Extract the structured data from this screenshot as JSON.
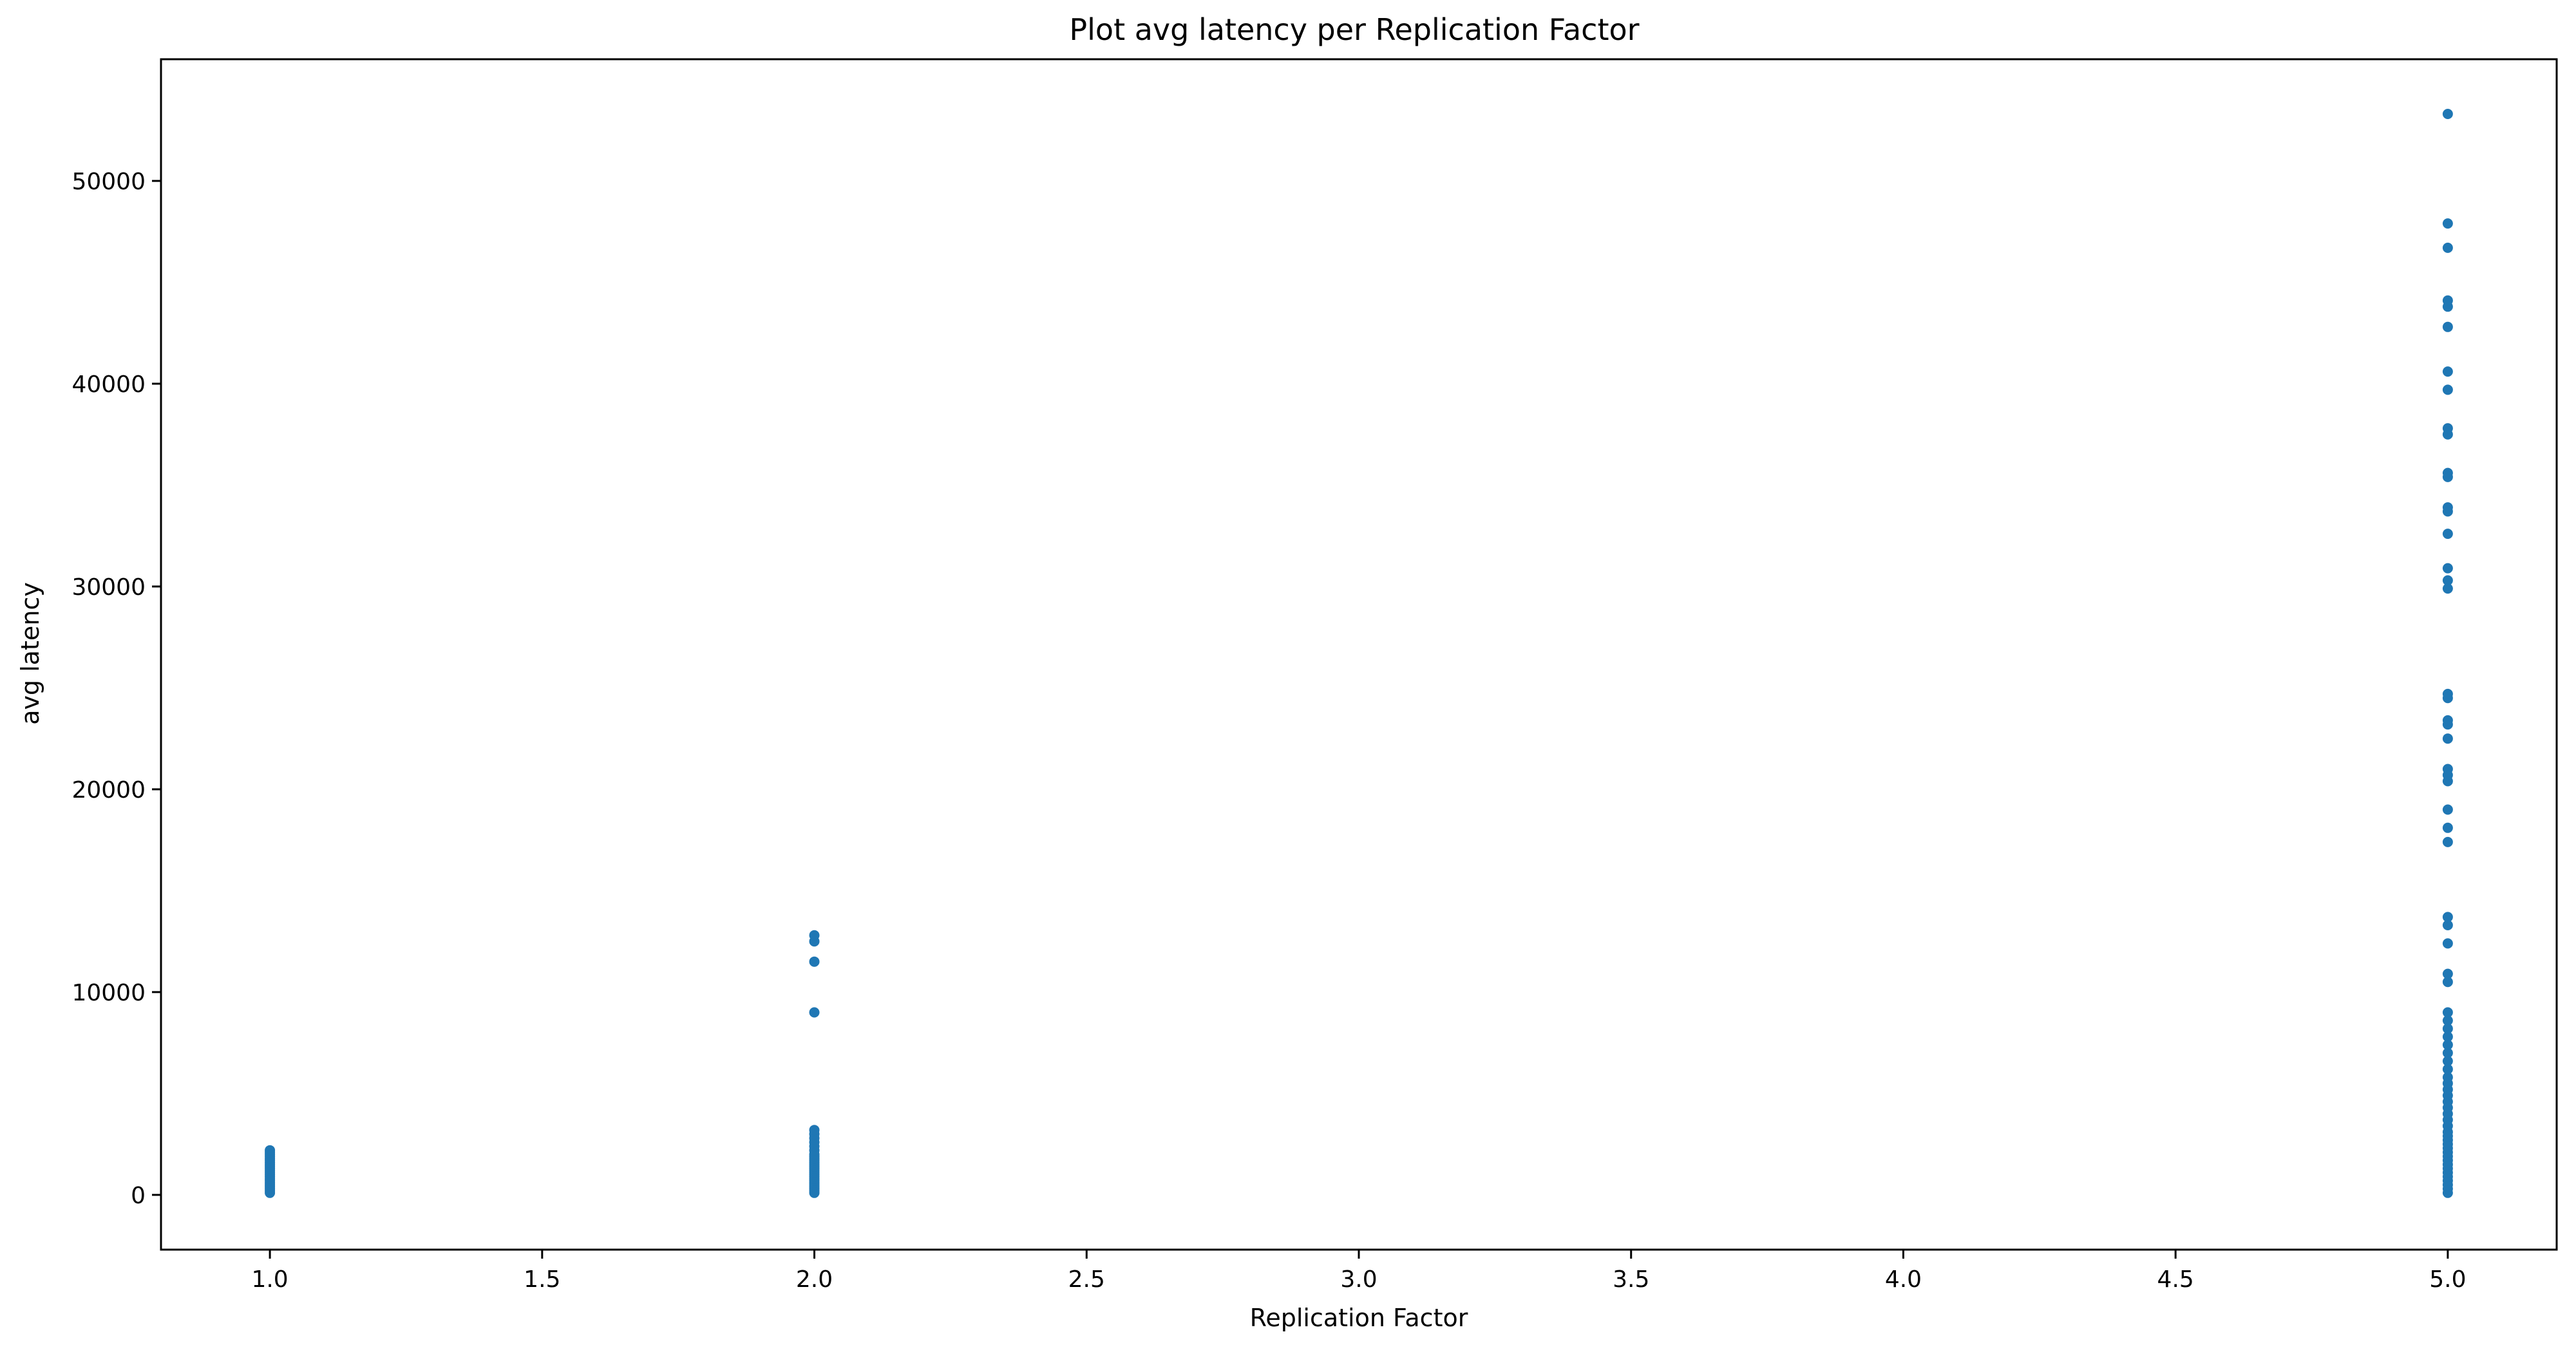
{
  "chart_data": {
    "type": "scatter",
    "title": "Plot avg latency per Replication Factor",
    "xlabel": "Replication Factor",
    "ylabel": "avg latency",
    "xlim": [
      0.8,
      5.2
    ],
    "ylim": [
      -2700,
      56000
    ],
    "xticks": [
      "1.0",
      "1.5",
      "2.0",
      "2.5",
      "3.0",
      "3.5",
      "4.0",
      "4.5",
      "5.0"
    ],
    "yticks": [
      "0",
      "10000",
      "20000",
      "30000",
      "40000",
      "50000"
    ],
    "grid": false,
    "legend": "none",
    "marker_color": "#1f77b4",
    "series": [
      {
        "points": [
          [
            1.0,
            100
          ],
          [
            1.0,
            200
          ],
          [
            1.0,
            300
          ],
          [
            1.0,
            400
          ],
          [
            1.0,
            500
          ],
          [
            1.0,
            600
          ],
          [
            1.0,
            700
          ],
          [
            1.0,
            800
          ],
          [
            1.0,
            900
          ],
          [
            1.0,
            1000
          ],
          [
            1.0,
            1100
          ],
          [
            1.0,
            1200
          ],
          [
            1.0,
            1300
          ],
          [
            1.0,
            1400
          ],
          [
            1.0,
            1500
          ],
          [
            1.0,
            1600
          ],
          [
            1.0,
            1700
          ],
          [
            1.0,
            1800
          ],
          [
            1.0,
            1900
          ],
          [
            1.0,
            2000
          ],
          [
            1.0,
            2100
          ],
          [
            1.0,
            2200
          ],
          [
            2.0,
            100
          ],
          [
            2.0,
            200
          ],
          [
            2.0,
            300
          ],
          [
            2.0,
            400
          ],
          [
            2.0,
            500
          ],
          [
            2.0,
            600
          ],
          [
            2.0,
            700
          ],
          [
            2.0,
            800
          ],
          [
            2.0,
            900
          ],
          [
            2.0,
            1000
          ],
          [
            2.0,
            1100
          ],
          [
            2.0,
            1200
          ],
          [
            2.0,
            1300
          ],
          [
            2.0,
            1400
          ],
          [
            2.0,
            1500
          ],
          [
            2.0,
            1600
          ],
          [
            2.0,
            1700
          ],
          [
            2.0,
            1800
          ],
          [
            2.0,
            1900
          ],
          [
            2.0,
            2000
          ],
          [
            2.0,
            2200
          ],
          [
            2.0,
            2400
          ],
          [
            2.0,
            2600
          ],
          [
            2.0,
            2800
          ],
          [
            2.0,
            3000
          ],
          [
            2.0,
            3200
          ],
          [
            2.0,
            9000
          ],
          [
            2.0,
            11500
          ],
          [
            2.0,
            12500
          ],
          [
            2.0,
            12800
          ],
          [
            5.0,
            100
          ],
          [
            5.0,
            300
          ],
          [
            5.0,
            500
          ],
          [
            5.0,
            700
          ],
          [
            5.0,
            900
          ],
          [
            5.0,
            1100
          ],
          [
            5.0,
            1300
          ],
          [
            5.0,
            1500
          ],
          [
            5.0,
            1700
          ],
          [
            5.0,
            1900
          ],
          [
            5.0,
            2100
          ],
          [
            5.0,
            2300
          ],
          [
            5.0,
            2500
          ],
          [
            5.0,
            2700
          ],
          [
            5.0,
            2900
          ],
          [
            5.0,
            3100
          ],
          [
            5.0,
            3400
          ],
          [
            5.0,
            3700
          ],
          [
            5.0,
            4000
          ],
          [
            5.0,
            4300
          ],
          [
            5.0,
            4600
          ],
          [
            5.0,
            4900
          ],
          [
            5.0,
            5200
          ],
          [
            5.0,
            5500
          ],
          [
            5.0,
            5800
          ],
          [
            5.0,
            6200
          ],
          [
            5.0,
            6600
          ],
          [
            5.0,
            7000
          ],
          [
            5.0,
            7400
          ],
          [
            5.0,
            7800
          ],
          [
            5.0,
            8200
          ],
          [
            5.0,
            8600
          ],
          [
            5.0,
            9000
          ],
          [
            5.0,
            10500
          ],
          [
            5.0,
            10900
          ],
          [
            5.0,
            12400
          ],
          [
            5.0,
            13300
          ],
          [
            5.0,
            13700
          ],
          [
            5.0,
            17400
          ],
          [
            5.0,
            18100
          ],
          [
            5.0,
            19000
          ],
          [
            5.0,
            20400
          ],
          [
            5.0,
            20700
          ],
          [
            5.0,
            21000
          ],
          [
            5.0,
            22500
          ],
          [
            5.0,
            23200
          ],
          [
            5.0,
            23400
          ],
          [
            5.0,
            24500
          ],
          [
            5.0,
            24700
          ],
          [
            5.0,
            29900
          ],
          [
            5.0,
            30300
          ],
          [
            5.0,
            30900
          ],
          [
            5.0,
            32600
          ],
          [
            5.0,
            33700
          ],
          [
            5.0,
            33900
          ],
          [
            5.0,
            35400
          ],
          [
            5.0,
            35600
          ],
          [
            5.0,
            37500
          ],
          [
            5.0,
            37800
          ],
          [
            5.0,
            39700
          ],
          [
            5.0,
            40600
          ],
          [
            5.0,
            42800
          ],
          [
            5.0,
            43800
          ],
          [
            5.0,
            44100
          ],
          [
            5.0,
            46700
          ],
          [
            5.0,
            47900
          ],
          [
            5.0,
            53300
          ]
        ]
      }
    ]
  }
}
